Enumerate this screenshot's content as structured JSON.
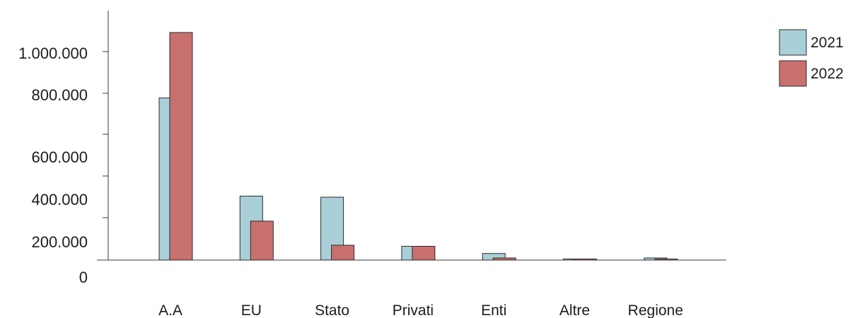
{
  "chart_data": {
    "type": "bar",
    "categories": [
      "A.A",
      "EU",
      "Stato",
      "Privati",
      "Enti",
      "Altre",
      "Regione"
    ],
    "series": [
      {
        "name": "2021",
        "color": "#a9cfd8",
        "values": [
          785000,
          405000,
          400000,
          130000,
          62000,
          4000,
          20000
        ]
      },
      {
        "name": "2022",
        "color": "#c8706e",
        "values": [
          1100000,
          285000,
          140000,
          130000,
          20000,
          8000,
          6000
        ]
      }
    ],
    "y_ticks": [
      {
        "value": 0,
        "label": "0"
      },
      {
        "value": 200000,
        "label": "200.000"
      },
      {
        "value": 400000,
        "label": "400.000"
      },
      {
        "value": 600000,
        "label": "600.000"
      },
      {
        "value": 800000,
        "label": "800.000"
      },
      {
        "value": 1000000,
        "label": "1.000.000"
      }
    ],
    "ylim": [
      0,
      1150000
    ],
    "grid": false,
    "legend_position": "top-right"
  }
}
